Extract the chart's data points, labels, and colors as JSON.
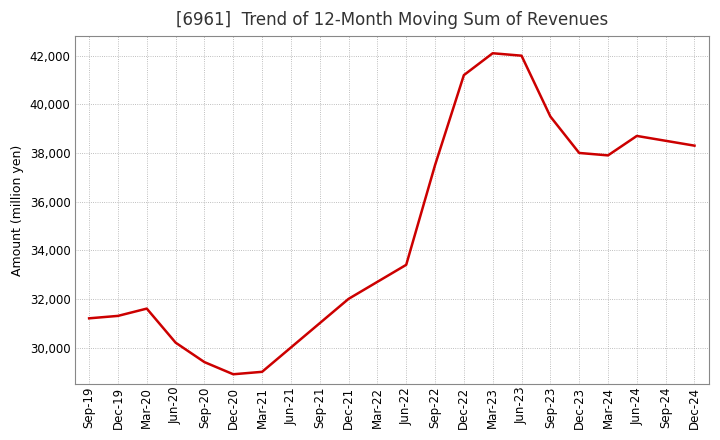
{
  "title": "[6961]  Trend of 12-Month Moving Sum of Revenues",
  "ylabel": "Amount (million yen)",
  "line_color": "#cc0000",
  "background_color": "#ffffff",
  "plot_bg_color": "#ffffff",
  "grid_color": "#aaaaaa",
  "x_labels": [
    "Sep-19",
    "Dec-19",
    "Mar-20",
    "Jun-20",
    "Sep-20",
    "Dec-20",
    "Mar-21",
    "Jun-21",
    "Sep-21",
    "Dec-21",
    "Mar-22",
    "Jun-22",
    "Sep-22",
    "Dec-22",
    "Mar-23",
    "Jun-23",
    "Sep-23",
    "Dec-23",
    "Mar-24",
    "Jun-24",
    "Sep-24",
    "Dec-24"
  ],
  "values": [
    31200,
    31300,
    31600,
    30200,
    29400,
    28900,
    29000,
    30000,
    31000,
    32000,
    32700,
    33400,
    37500,
    41200,
    42100,
    42000,
    39500,
    38000,
    37900,
    38700,
    38500,
    38300
  ],
  "ylim": [
    28500,
    42800
  ],
  "yticks": [
    30000,
    32000,
    34000,
    36000,
    38000,
    40000,
    42000
  ],
  "title_fontsize": 12,
  "tick_fontsize": 8.5,
  "ylabel_fontsize": 9
}
